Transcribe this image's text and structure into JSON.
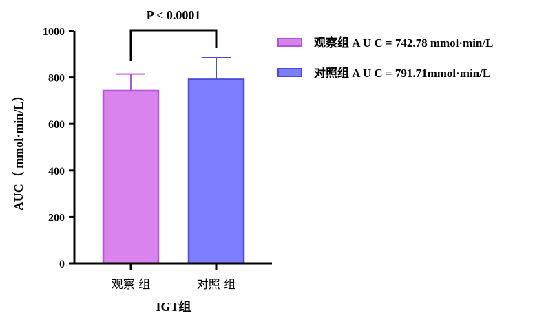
{
  "chart_data": {
    "type": "bar",
    "categories": [
      "观察 组",
      "对照 组"
    ],
    "values": [
      742.78,
      791.71
    ],
    "errors": [
      72,
      93
    ],
    "series_colors": [
      "#d883ee",
      "#7d7dff"
    ],
    "series_stroke": [
      "#b455d6",
      "#4b4bd8"
    ],
    "xlabel": "IGT组",
    "ylabel": "AUC（ mmol·min/L）",
    "ylim": [
      0,
      1000
    ],
    "yticks": [
      0,
      200,
      400,
      600,
      800,
      1000
    ],
    "significance": "P < 0.0001",
    "legend": [
      "观察组 A U C = 742.78 mmol·min/L",
      "对照组 A U C = 791.71mmol·min/L"
    ],
    "legend_position": "top-right",
    "grid": false
  }
}
